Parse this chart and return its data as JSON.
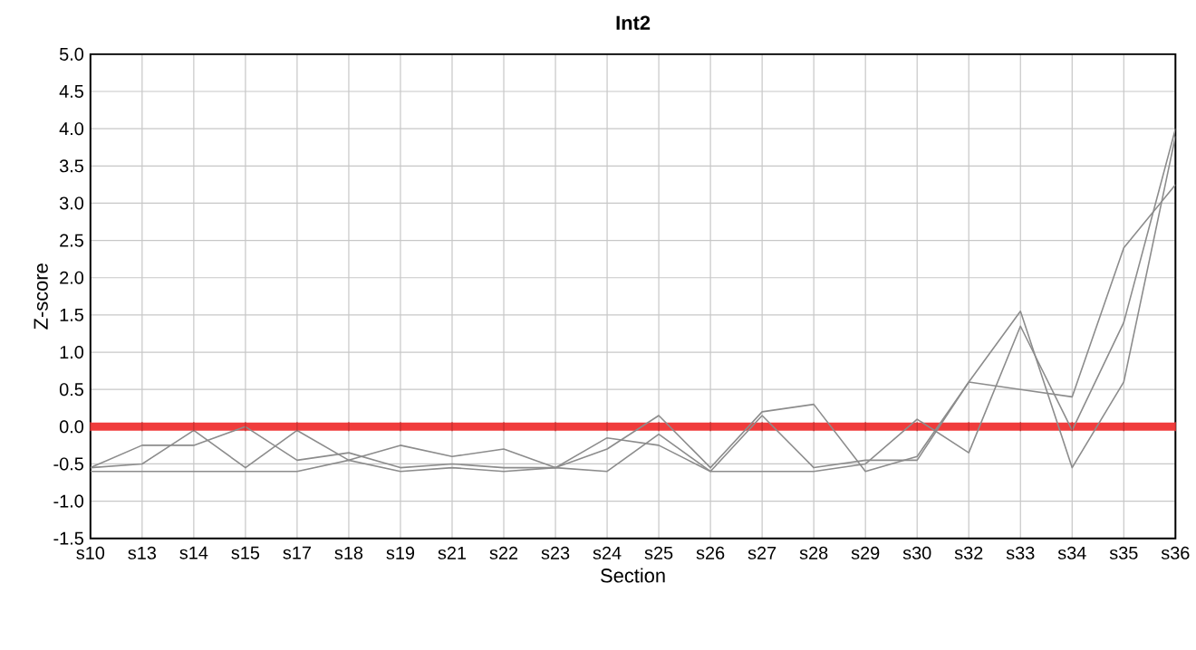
{
  "chart_data": {
    "type": "line",
    "title": "Int2",
    "xlabel": "Section",
    "ylabel": "Z-score",
    "categories": [
      "s10",
      "s13",
      "s14",
      "s15",
      "s17",
      "s18",
      "s19",
      "s21",
      "s22",
      "s23",
      "s24",
      "s25",
      "s26",
      "s27",
      "s28",
      "s29",
      "s30",
      "s32",
      "s33",
      "s34",
      "s35",
      "s36"
    ],
    "series": [
      {
        "color": "#8c8c8c",
        "values": [
          -0.55,
          -0.25,
          -0.25,
          0.0,
          -0.45,
          -0.35,
          -0.55,
          -0.5,
          -0.55,
          -0.55,
          -0.15,
          -0.25,
          -0.6,
          0.15,
          -0.55,
          -0.45,
          -0.45,
          0.6,
          1.55,
          -0.55,
          0.6,
          3.9
        ]
      },
      {
        "color": "#8c8c8c",
        "values": [
          -0.55,
          -0.5,
          -0.05,
          -0.55,
          -0.05,
          -0.45,
          -0.25,
          -0.4,
          -0.3,
          -0.55,
          -0.3,
          0.15,
          -0.55,
          0.2,
          0.3,
          -0.6,
          -0.4,
          0.6,
          0.5,
          0.4,
          2.4,
          3.25
        ]
      },
      {
        "color": "#8c8c8c",
        "values": [
          -0.6,
          -0.6,
          -0.6,
          -0.6,
          -0.6,
          -0.45,
          -0.6,
          -0.55,
          -0.6,
          -0.55,
          -0.6,
          -0.1,
          -0.6,
          -0.6,
          -0.6,
          -0.5,
          0.1,
          -0.35,
          1.35,
          -0.05,
          1.4,
          4.0
        ]
      }
    ],
    "ylim": [
      -1.5,
      5.0
    ],
    "yticks": [
      -1.5,
      {
        "value": -1,
        "label": "-1.0"
      },
      -0.5,
      {
        "value": 0,
        "label": "0.0"
      },
      0.5,
      {
        "value": 1,
        "label": "1.0"
      },
      1.5,
      {
        "value": 2,
        "label": "2.0"
      },
      2.5,
      {
        "value": 3,
        "label": "3.0"
      },
      3.5,
      {
        "value": 4,
        "label": "4.0"
      },
      4.5,
      {
        "value": 5,
        "label": "5.0"
      }
    ],
    "ref_lines": [
      {
        "axis": "y",
        "value": 0,
        "color": "#f03c3c"
      }
    ],
    "grid": true,
    "marker": "none",
    "line_style": "solid"
  }
}
